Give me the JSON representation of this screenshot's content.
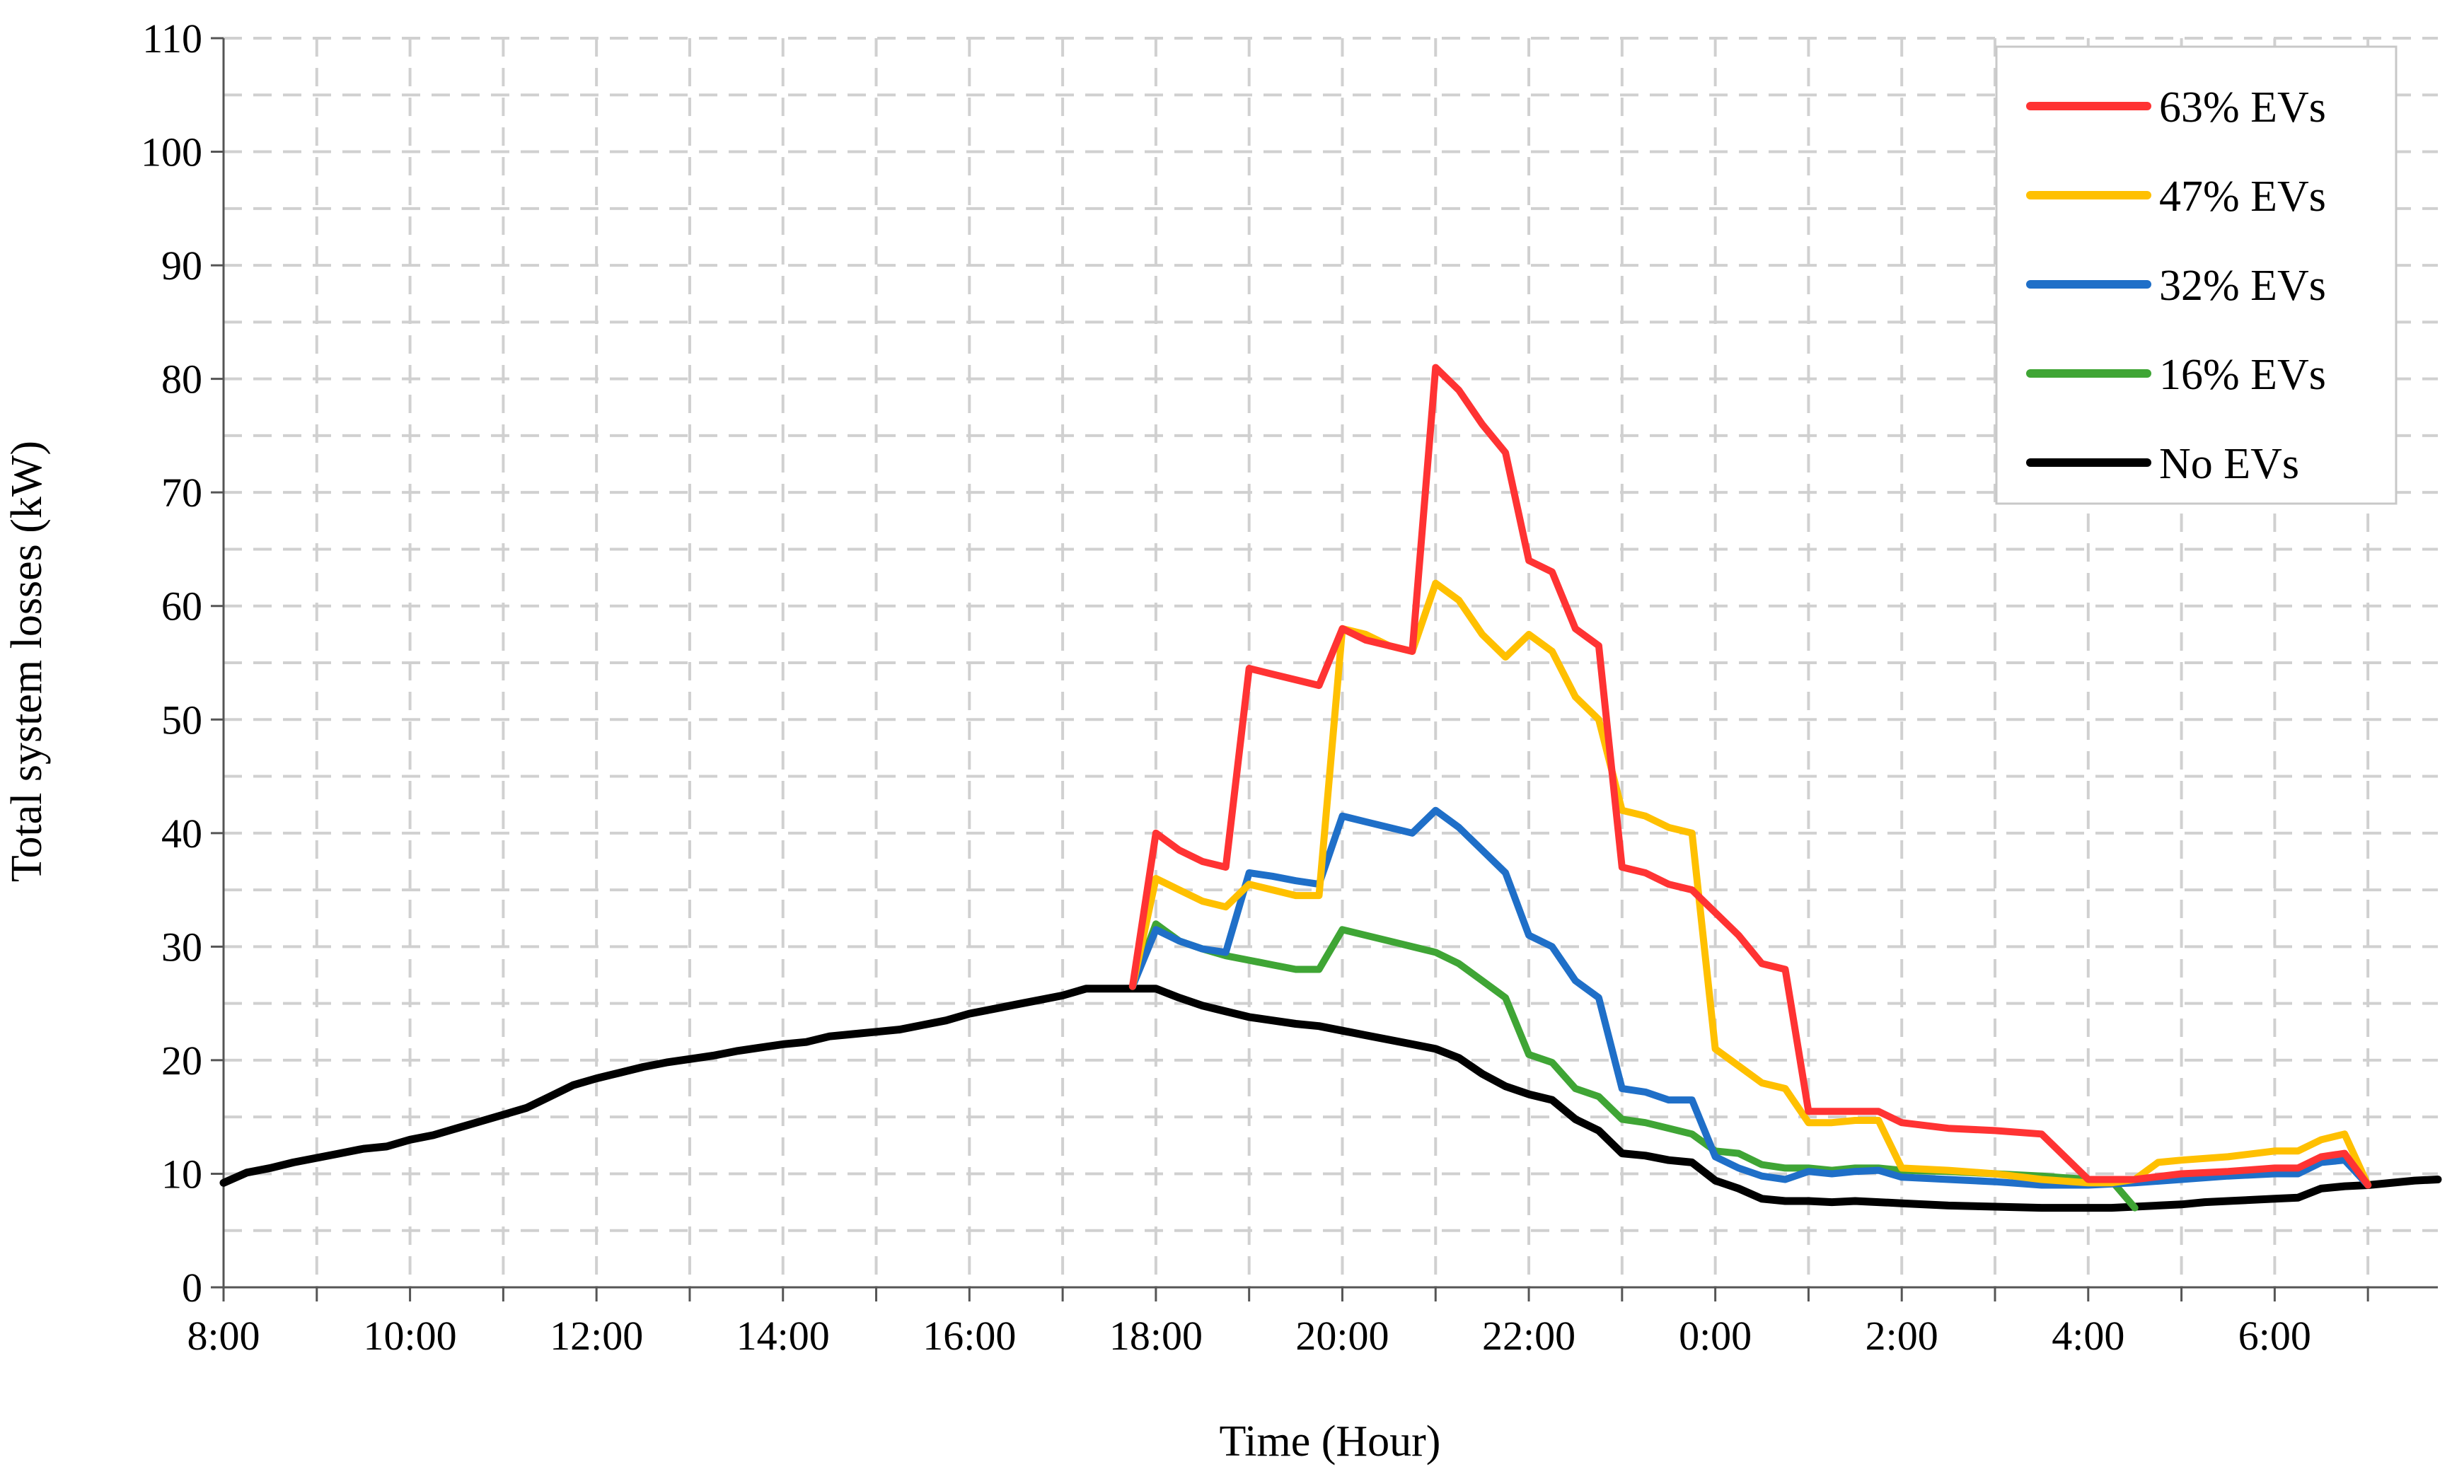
{
  "chart_data": {
    "type": "line",
    "title": "",
    "xlabel": "Time (Hour)",
    "ylabel": "Total system losses (kW)",
    "ylim": [
      0,
      110
    ],
    "xlim": [
      0,
      23.75
    ],
    "yticks": [
      0,
      10,
      20,
      30,
      40,
      50,
      60,
      70,
      80,
      90,
      100,
      110
    ],
    "xticks": [
      {
        "x": 0,
        "label": "8:00"
      },
      {
        "x": 2,
        "label": "10:00"
      },
      {
        "x": 4,
        "label": "12:00"
      },
      {
        "x": 6,
        "label": "14:00"
      },
      {
        "x": 8,
        "label": "16:00"
      },
      {
        "x": 10,
        "label": "18:00"
      },
      {
        "x": 12,
        "label": "20:00"
      },
      {
        "x": 14,
        "label": "22:00"
      },
      {
        "x": 16,
        "label": "0:00"
      },
      {
        "x": 18,
        "label": "2:00"
      },
      {
        "x": 20,
        "label": "4:00"
      },
      {
        "x": 22,
        "label": "6:00"
      }
    ],
    "x_unit_note": "hours elapsed since 8:00",
    "grid": true,
    "legend_position": "top-right",
    "series": [
      {
        "name": "63% EVs",
        "color": "#ff3333",
        "points": [
          [
            9.75,
            26.5
          ],
          [
            10,
            40
          ],
          [
            10.25,
            38.5
          ],
          [
            10.5,
            37.5
          ],
          [
            10.75,
            37
          ],
          [
            11,
            54.5
          ],
          [
            11.25,
            54
          ],
          [
            11.5,
            53.5
          ],
          [
            11.75,
            53
          ],
          [
            12,
            58
          ],
          [
            12.25,
            57
          ],
          [
            12.5,
            56.5
          ],
          [
            12.75,
            56
          ],
          [
            13,
            81
          ],
          [
            13.25,
            79
          ],
          [
            13.5,
            76
          ],
          [
            13.75,
            73.5
          ],
          [
            14,
            64
          ],
          [
            14.25,
            63
          ],
          [
            14.5,
            58
          ],
          [
            14.75,
            56.5
          ],
          [
            15,
            37
          ],
          [
            15.25,
            36.5
          ],
          [
            15.5,
            35.5
          ],
          [
            15.75,
            35
          ],
          [
            16,
            33
          ],
          [
            16.25,
            31
          ],
          [
            16.5,
            28.5
          ],
          [
            16.75,
            28
          ],
          [
            17,
            15.5
          ],
          [
            17.25,
            15.5
          ],
          [
            17.5,
            15.5
          ],
          [
            17.75,
            15.5
          ],
          [
            18,
            14.5
          ],
          [
            18.5,
            14
          ],
          [
            19,
            13.8
          ],
          [
            19.5,
            13.5
          ],
          [
            20,
            9.5
          ],
          [
            20.25,
            9.5
          ],
          [
            20.5,
            9.5
          ],
          [
            21,
            10
          ],
          [
            21.5,
            10.2
          ],
          [
            22,
            10.5
          ],
          [
            22.25,
            10.5
          ],
          [
            22.5,
            11.5
          ],
          [
            22.75,
            11.8
          ],
          [
            23,
            9
          ]
        ]
      },
      {
        "name": "47% EVs",
        "color": "#ffc000",
        "points": [
          [
            9.75,
            26.5
          ],
          [
            10,
            36
          ],
          [
            10.25,
            35
          ],
          [
            10.5,
            34
          ],
          [
            10.75,
            33.5
          ],
          [
            11,
            35.5
          ],
          [
            11.25,
            35
          ],
          [
            11.5,
            34.5
          ],
          [
            11.75,
            34.5
          ],
          [
            12,
            58
          ],
          [
            12.25,
            57.5
          ],
          [
            12.5,
            56.5
          ],
          [
            12.75,
            56
          ],
          [
            13,
            62
          ],
          [
            13.25,
            60.5
          ],
          [
            13.5,
            57.5
          ],
          [
            13.75,
            55.5
          ],
          [
            14,
            57.5
          ],
          [
            14.25,
            56
          ],
          [
            14.5,
            52
          ],
          [
            14.75,
            50
          ],
          [
            15,
            42
          ],
          [
            15.25,
            41.5
          ],
          [
            15.5,
            40.5
          ],
          [
            15.75,
            40
          ],
          [
            16,
            21
          ],
          [
            16.25,
            19.5
          ],
          [
            16.5,
            18
          ],
          [
            16.75,
            17.5
          ],
          [
            17,
            14.5
          ],
          [
            17.25,
            14.5
          ],
          [
            17.5,
            14.7
          ],
          [
            17.75,
            14.7
          ],
          [
            18,
            10.5
          ],
          [
            18.5,
            10.3
          ],
          [
            19,
            10
          ],
          [
            19.5,
            9.5
          ],
          [
            20,
            9.2
          ],
          [
            20.25,
            9.2
          ],
          [
            20.5,
            9.5
          ],
          [
            20.75,
            11
          ],
          [
            21,
            11.2
          ],
          [
            21.5,
            11.5
          ],
          [
            22,
            12
          ],
          [
            22.25,
            12
          ],
          [
            22.5,
            13
          ],
          [
            22.75,
            13.5
          ],
          [
            23,
            9
          ]
        ]
      },
      {
        "name": "32% EVs",
        "color": "#1f6fc8",
        "points": [
          [
            9.75,
            26.5
          ],
          [
            10,
            31.5
          ],
          [
            10.25,
            30.5
          ],
          [
            10.5,
            29.8
          ],
          [
            10.75,
            29.5
          ],
          [
            11,
            36.5
          ],
          [
            11.25,
            36.2
          ],
          [
            11.5,
            35.8
          ],
          [
            11.75,
            35.5
          ],
          [
            12,
            41.5
          ],
          [
            12.25,
            41
          ],
          [
            12.5,
            40.5
          ],
          [
            12.75,
            40
          ],
          [
            13,
            42
          ],
          [
            13.25,
            40.5
          ],
          [
            13.5,
            38.5
          ],
          [
            13.75,
            36.5
          ],
          [
            14,
            31
          ],
          [
            14.25,
            30
          ],
          [
            14.5,
            27
          ],
          [
            14.75,
            25.5
          ],
          [
            15,
            17.5
          ],
          [
            15.25,
            17.2
          ],
          [
            15.5,
            16.5
          ],
          [
            15.75,
            16.5
          ],
          [
            16,
            11.5
          ],
          [
            16.25,
            10.5
          ],
          [
            16.5,
            9.8
          ],
          [
            16.75,
            9.5
          ],
          [
            17,
            10.2
          ],
          [
            17.25,
            10
          ],
          [
            17.5,
            10.2
          ],
          [
            17.75,
            10.3
          ],
          [
            18,
            9.7
          ],
          [
            18.5,
            9.5
          ],
          [
            19,
            9.3
          ],
          [
            19.5,
            9
          ],
          [
            20,
            9
          ],
          [
            20.5,
            9.2
          ],
          [
            21,
            9.5
          ],
          [
            21.5,
            9.8
          ],
          [
            22,
            10
          ],
          [
            22.25,
            10
          ],
          [
            22.5,
            11
          ],
          [
            22.75,
            11.2
          ],
          [
            23,
            9
          ]
        ]
      },
      {
        "name": "16% EVs",
        "color": "#3fa535",
        "points": [
          [
            9.75,
            26.5
          ],
          [
            10,
            32
          ],
          [
            10.25,
            30.5
          ],
          [
            10.5,
            29.8
          ],
          [
            10.75,
            29.2
          ],
          [
            11,
            28.8
          ],
          [
            11.25,
            28.4
          ],
          [
            11.5,
            28
          ],
          [
            11.75,
            28
          ],
          [
            12,
            31.5
          ],
          [
            12.25,
            31
          ],
          [
            12.5,
            30.5
          ],
          [
            12.75,
            30
          ],
          [
            13,
            29.5
          ],
          [
            13.25,
            28.5
          ],
          [
            13.5,
            27
          ],
          [
            13.75,
            25.5
          ],
          [
            14,
            20.5
          ],
          [
            14.25,
            19.8
          ],
          [
            14.5,
            17.5
          ],
          [
            14.75,
            16.8
          ],
          [
            15,
            14.8
          ],
          [
            15.25,
            14.5
          ],
          [
            15.5,
            14
          ],
          [
            15.75,
            13.5
          ],
          [
            16,
            12
          ],
          [
            16.25,
            11.8
          ],
          [
            16.5,
            10.8
          ],
          [
            16.75,
            10.5
          ],
          [
            17,
            10.5
          ],
          [
            17.25,
            10.3
          ],
          [
            17.5,
            10.5
          ],
          [
            17.75,
            10.5
          ],
          [
            18,
            10.3
          ],
          [
            18.5,
            10.2
          ],
          [
            19,
            10
          ],
          [
            19.5,
            9.8
          ],
          [
            20,
            9.5
          ],
          [
            20.25,
            9.4
          ],
          [
            20.5,
            7
          ]
        ]
      },
      {
        "name": "No EVs",
        "color": "#000000",
        "points": [
          [
            0,
            9.2
          ],
          [
            0.25,
            10.1
          ],
          [
            0.5,
            10.5
          ],
          [
            0.75,
            11
          ],
          [
            1,
            11.4
          ],
          [
            1.25,
            11.8
          ],
          [
            1.5,
            12.2
          ],
          [
            1.75,
            12.4
          ],
          [
            2,
            13
          ],
          [
            2.25,
            13.4
          ],
          [
            2.5,
            14
          ],
          [
            2.75,
            14.6
          ],
          [
            3,
            15.2
          ],
          [
            3.25,
            15.8
          ],
          [
            3.5,
            16.8
          ],
          [
            3.75,
            17.8
          ],
          [
            4,
            18.4
          ],
          [
            4.25,
            18.9
          ],
          [
            4.5,
            19.4
          ],
          [
            4.75,
            19.8
          ],
          [
            5,
            20.1
          ],
          [
            5.25,
            20.4
          ],
          [
            5.5,
            20.8
          ],
          [
            5.75,
            21.1
          ],
          [
            6,
            21.4
          ],
          [
            6.25,
            21.6
          ],
          [
            6.5,
            22.1
          ],
          [
            6.75,
            22.3
          ],
          [
            7,
            22.5
          ],
          [
            7.25,
            22.7
          ],
          [
            7.5,
            23.1
          ],
          [
            7.75,
            23.5
          ],
          [
            8,
            24.1
          ],
          [
            8.25,
            24.5
          ],
          [
            8.5,
            24.9
          ],
          [
            8.75,
            25.3
          ],
          [
            9,
            25.7
          ],
          [
            9.25,
            26.3
          ],
          [
            9.5,
            26.3
          ],
          [
            9.75,
            26.3
          ],
          [
            10,
            26.3
          ],
          [
            10.25,
            25.5
          ],
          [
            10.5,
            24.8
          ],
          [
            10.75,
            24.3
          ],
          [
            11,
            23.8
          ],
          [
            11.25,
            23.5
          ],
          [
            11.5,
            23.2
          ],
          [
            11.75,
            23
          ],
          [
            12,
            22.6
          ],
          [
            12.25,
            22.2
          ],
          [
            12.5,
            21.8
          ],
          [
            12.75,
            21.4
          ],
          [
            13,
            21
          ],
          [
            13.25,
            20.2
          ],
          [
            13.5,
            18.8
          ],
          [
            13.75,
            17.7
          ],
          [
            14,
            17
          ],
          [
            14.25,
            16.5
          ],
          [
            14.5,
            14.8
          ],
          [
            14.75,
            13.8
          ],
          [
            15,
            11.8
          ],
          [
            15.25,
            11.6
          ],
          [
            15.5,
            11.2
          ],
          [
            15.75,
            11
          ],
          [
            16,
            9.4
          ],
          [
            16.25,
            8.7
          ],
          [
            16.5,
            7.8
          ],
          [
            16.75,
            7.6
          ],
          [
            17,
            7.6
          ],
          [
            17.25,
            7.5
          ],
          [
            17.5,
            7.6
          ],
          [
            17.75,
            7.5
          ],
          [
            18,
            7.4
          ],
          [
            18.5,
            7.2
          ],
          [
            19,
            7.1
          ],
          [
            19.5,
            7
          ],
          [
            20,
            7
          ],
          [
            20.25,
            7
          ],
          [
            20.5,
            7.1
          ],
          [
            20.75,
            7.2
          ],
          [
            21,
            7.3
          ],
          [
            21.25,
            7.5
          ],
          [
            21.5,
            7.6
          ],
          [
            22,
            7.8
          ],
          [
            22.25,
            7.9
          ],
          [
            22.5,
            8.7
          ],
          [
            22.75,
            8.9
          ],
          [
            23,
            9
          ],
          [
            23.5,
            9.4
          ],
          [
            23.75,
            9.5
          ]
        ]
      }
    ]
  }
}
